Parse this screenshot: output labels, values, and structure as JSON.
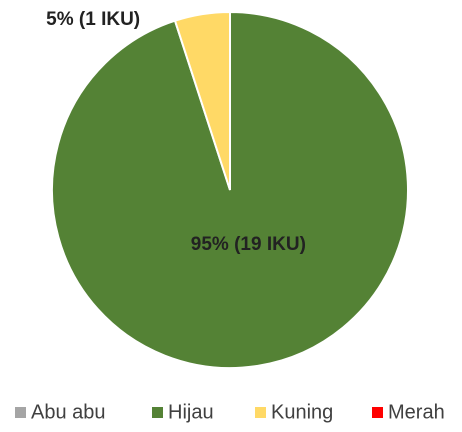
{
  "chart_data": {
    "type": "pie",
    "categories": [
      "Abu abu",
      "Hijau",
      "Kuning",
      "Merah"
    ],
    "values": [
      0,
      95,
      5,
      0
    ],
    "value_labels": [
      null,
      "95% (19 IKU)",
      "5% (1 IKU)",
      null
    ],
    "colors": [
      "#a5a5a5",
      "#548235",
      "#ffd966",
      "#ff0000"
    ],
    "legend": "bottom"
  }
}
